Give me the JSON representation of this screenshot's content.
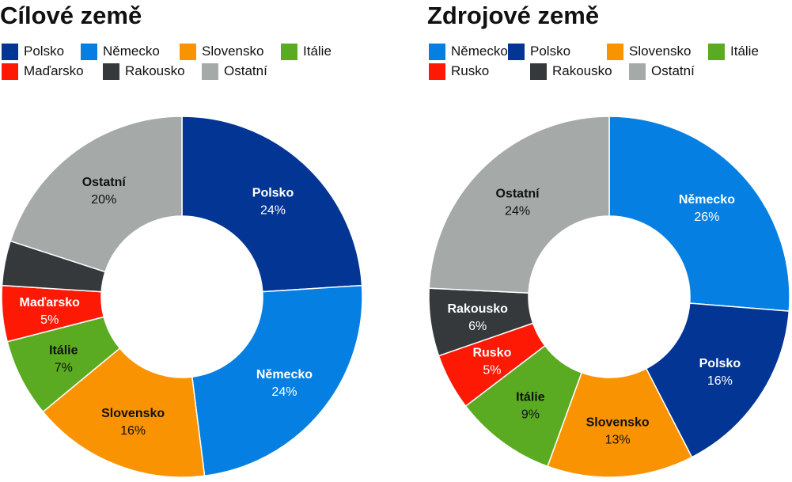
{
  "charts": [
    {
      "title": "Cílové země",
      "legend_rows": [
        [
          "Polsko",
          "Německo",
          "Slovensko",
          "Itálie"
        ],
        [
          "Maďarsko",
          "Rakousko",
          "Ostatní"
        ]
      ],
      "colors": {
        "Polsko": "#033595",
        "Německo": "#0580e2",
        "Slovensko": "#fa9302",
        "Itálie": "#5aab22",
        "Maďarsko": "#fd1904",
        "Rakousko": "#36393b",
        "Ostatní": "#a5a9a8"
      },
      "label_colors": {
        "Polsko": "#ffffff",
        "Německo": "#ffffff",
        "Slovensko": "#111111",
        "Itálie": "#111111",
        "Maďarsko": "#ffffff",
        "Rakousko": "#ffffff",
        "Ostatní": "#111111"
      }
    },
    {
      "title": "Zdrojové země",
      "legend_rows": [
        [
          "Německo",
          "Polsko",
          "Slovensko",
          "Itálie"
        ],
        [
          "Rusko",
          "Rakousko",
          "Ostatní"
        ]
      ],
      "colors": {
        "Německo": "#0580e2",
        "Polsko": "#033595",
        "Slovensko": "#fa9302",
        "Itálie": "#5aab22",
        "Rusko": "#fd1904",
        "Rakousko": "#36393b",
        "Ostatní": "#a5a9a8"
      },
      "label_colors": {
        "Německo": "#ffffff",
        "Polsko": "#ffffff",
        "Slovensko": "#111111",
        "Itálie": "#111111",
        "Rusko": "#ffffff",
        "Rakousko": "#ffffff",
        "Ostatní": "#111111"
      }
    }
  ],
  "chart_data": [
    {
      "type": "pie",
      "variant": "donut",
      "title": "Cílové země",
      "categories": [
        "Polsko",
        "Německo",
        "Slovensko",
        "Itálie",
        "Maďarsko",
        "Rakousko",
        "Ostatní"
      ],
      "values": [
        24,
        24,
        16,
        7,
        5,
        4,
        20
      ],
      "data_labels": [
        "24%",
        "24%",
        "16%",
        "7%",
        "5%",
        "",
        "20%"
      ],
      "unit": "%",
      "legend_position": "top-left"
    },
    {
      "type": "pie",
      "variant": "donut",
      "title": "Zdrojové země",
      "categories": [
        "Německo",
        "Polsko",
        "Slovensko",
        "Itálie",
        "Rusko",
        "Rakousko",
        "Ostatní"
      ],
      "values": [
        26,
        16,
        13,
        9,
        5,
        6,
        24
      ],
      "data_labels": [
        "26%",
        "16%",
        "13%",
        "9%",
        "5%",
        "6%",
        "24%"
      ],
      "unit": "%",
      "legend_position": "top-left"
    }
  ]
}
